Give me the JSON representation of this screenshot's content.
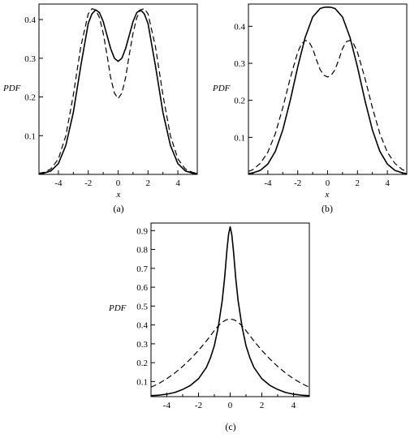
{
  "chart_data": [
    {
      "type": "line",
      "panel_label": "(a)",
      "xlabel": "x",
      "ylabel": "PDF",
      "xlim": [
        -5.3,
        5.3
      ],
      "ylim": [
        0,
        0.44
      ],
      "xticks": [
        -4,
        -2,
        0,
        2,
        4
      ],
      "yticks": [
        0.1,
        0.2,
        0.3,
        0.4
      ],
      "grid": false,
      "series": [
        {
          "style": "solid",
          "x": [
            -5.3,
            -5,
            -4.5,
            -4,
            -3.5,
            -3,
            -2.5,
            -2,
            -1.75,
            -1.5,
            -1.25,
            -1,
            -0.75,
            -0.5,
            -0.25,
            0,
            0.25,
            0.5,
            0.75,
            1,
            1.25,
            1.5,
            1.75,
            2,
            2.5,
            3,
            3.5,
            4,
            4.5,
            5,
            5.3
          ],
          "y": [
            0.002,
            0.003,
            0.009,
            0.028,
            0.075,
            0.16,
            0.28,
            0.39,
            0.415,
            0.425,
            0.418,
            0.395,
            0.36,
            0.325,
            0.3,
            0.292,
            0.3,
            0.325,
            0.36,
            0.395,
            0.418,
            0.425,
            0.415,
            0.39,
            0.28,
            0.16,
            0.075,
            0.028,
            0.009,
            0.003,
            0.002
          ]
        },
        {
          "style": "dashed",
          "x": [
            -5.3,
            -5,
            -4.5,
            -4,
            -3.5,
            -3,
            -2.5,
            -2,
            -1.75,
            -1.5,
            -1.25,
            -1,
            -0.75,
            -0.5,
            -0.25,
            0,
            0.25,
            0.5,
            0.75,
            1,
            1.25,
            1.5,
            1.75,
            2,
            2.5,
            3,
            3.5,
            4,
            4.5,
            5,
            5.3
          ],
          "y": [
            0.003,
            0.005,
            0.014,
            0.04,
            0.1,
            0.205,
            0.33,
            0.415,
            0.428,
            0.425,
            0.405,
            0.365,
            0.31,
            0.25,
            0.21,
            0.196,
            0.21,
            0.25,
            0.31,
            0.365,
            0.405,
            0.425,
            0.428,
            0.415,
            0.33,
            0.205,
            0.1,
            0.04,
            0.014,
            0.005,
            0.003
          ]
        }
      ]
    },
    {
      "type": "line",
      "panel_label": "(b)",
      "xlabel": "x",
      "ylabel": "PDF",
      "xlim": [
        -5.3,
        5.3
      ],
      "ylim": [
        0,
        0.46
      ],
      "xticks": [
        -4,
        -2,
        0,
        2,
        4
      ],
      "yticks": [
        0.1,
        0.2,
        0.3,
        0.4
      ],
      "grid": false,
      "series": [
        {
          "style": "solid",
          "x": [
            -5.3,
            -5,
            -4.5,
            -4,
            -3.5,
            -3,
            -2.5,
            -2,
            -1.5,
            -1,
            -0.5,
            -0.25,
            0,
            0.25,
            0.5,
            1,
            1.5,
            2,
            2.5,
            3,
            3.5,
            4,
            4.5,
            5,
            5.3
          ],
          "y": [
            0.002,
            0.004,
            0.011,
            0.028,
            0.062,
            0.12,
            0.2,
            0.29,
            0.37,
            0.425,
            0.448,
            0.451,
            0.452,
            0.451,
            0.448,
            0.425,
            0.37,
            0.29,
            0.2,
            0.12,
            0.062,
            0.028,
            0.011,
            0.004,
            0.002
          ]
        },
        {
          "style": "dashed",
          "x": [
            -5.3,
            -5,
            -4.5,
            -4,
            -3.5,
            -3,
            -2.5,
            -2,
            -1.75,
            -1.5,
            -1.25,
            -1,
            -0.75,
            -0.5,
            -0.25,
            0,
            0.25,
            0.5,
            0.75,
            1,
            1.25,
            1.5,
            1.75,
            2,
            2.5,
            3,
            3.5,
            4,
            4.5,
            5,
            5.3
          ],
          "y": [
            0.008,
            0.013,
            0.03,
            0.06,
            0.11,
            0.18,
            0.26,
            0.33,
            0.352,
            0.362,
            0.358,
            0.34,
            0.31,
            0.283,
            0.268,
            0.263,
            0.268,
            0.283,
            0.31,
            0.34,
            0.358,
            0.362,
            0.352,
            0.33,
            0.26,
            0.18,
            0.11,
            0.06,
            0.03,
            0.013,
            0.008
          ]
        }
      ]
    },
    {
      "type": "line",
      "panel_label": "(c)",
      "xlabel": "",
      "ylabel": "PDF",
      "xlim": [
        -5,
        5
      ],
      "ylim": [
        0.02,
        0.94
      ],
      "xticks": [
        -4,
        -2,
        0,
        2,
        4
      ],
      "yticks": [
        0.1,
        0.2,
        0.3,
        0.4,
        0.5,
        0.6,
        0.7,
        0.8,
        0.9
      ],
      "grid": false,
      "series": [
        {
          "style": "solid",
          "x": [
            -5,
            -4.5,
            -4,
            -3.5,
            -3,
            -2.5,
            -2,
            -1.5,
            -1.25,
            -1,
            -0.75,
            -0.5,
            -0.35,
            -0.2,
            -0.1,
            0,
            0.1,
            0.2,
            0.35,
            0.5,
            0.75,
            1,
            1.25,
            1.5,
            2,
            2.5,
            3,
            3.5,
            4,
            4.5,
            5
          ],
          "y": [
            0.025,
            0.028,
            0.033,
            0.042,
            0.058,
            0.08,
            0.115,
            0.175,
            0.225,
            0.29,
            0.39,
            0.53,
            0.65,
            0.8,
            0.88,
            0.92,
            0.88,
            0.8,
            0.65,
            0.53,
            0.39,
            0.29,
            0.225,
            0.175,
            0.115,
            0.08,
            0.058,
            0.042,
            0.033,
            0.028,
            0.025
          ]
        },
        {
          "style": "dashed",
          "x": [
            -5,
            -4.5,
            -4,
            -3.5,
            -3,
            -2.5,
            -2,
            -1.5,
            -1,
            -0.75,
            -0.5,
            -0.25,
            0,
            0.25,
            0.5,
            0.75,
            1,
            1.5,
            2,
            2.5,
            3,
            3.5,
            4,
            4.5,
            5
          ],
          "y": [
            0.07,
            0.09,
            0.115,
            0.145,
            0.18,
            0.22,
            0.265,
            0.315,
            0.37,
            0.395,
            0.415,
            0.427,
            0.432,
            0.427,
            0.415,
            0.395,
            0.37,
            0.315,
            0.265,
            0.22,
            0.18,
            0.145,
            0.115,
            0.09,
            0.07
          ]
        }
      ]
    }
  ]
}
